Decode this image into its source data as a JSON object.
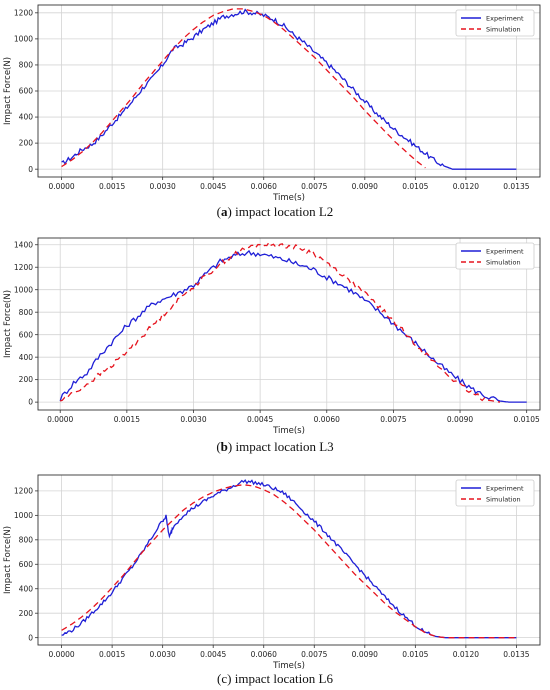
{
  "chart_data": [
    {
      "type": "line",
      "xlabel": "Time(s)",
      "ylabel": "Impact Force(N)",
      "xticks": [
        "0.0000",
        "0.0015",
        "0.0030",
        "0.0045",
        "0.0060",
        "0.0075",
        "0.0090",
        "0.0105",
        "0.0120",
        "0.0135"
      ],
      "yticks": [
        "0",
        "200",
        "400",
        "600",
        "800",
        "1000",
        "1200"
      ],
      "xlim": [
        -0.0007,
        0.0142
      ],
      "ylim": [
        -60,
        1260
      ],
      "grid": true,
      "legend": "top-right",
      "caption_letter": "a",
      "caption_text": "impact location L2",
      "series": [
        {
          "name": "Experiment",
          "color": "#1f1fd6",
          "dash": "solid",
          "noise": 18,
          "x": [
            0,
            0.0003,
            0.0006,
            0.0009,
            0.0012,
            0.0015,
            0.0018,
            0.0021,
            0.0024,
            0.0027,
            0.003,
            0.0033,
            0.0036,
            0.0039,
            0.0042,
            0.0045,
            0.0048,
            0.0051,
            0.0054,
            0.0057,
            0.006,
            0.0063,
            0.0066,
            0.0069,
            0.0072,
            0.0075,
            0.0078,
            0.0081,
            0.0084,
            0.0087,
            0.009,
            0.0093,
            0.0096,
            0.0099,
            0.0102,
            0.0105,
            0.0108,
            0.0111,
            0.0114,
            0.0116,
            0.012,
            0.0125,
            0.013,
            0.0135
          ],
          "y": [
            40,
            90,
            150,
            190,
            260,
            350,
            430,
            520,
            620,
            700,
            800,
            920,
            960,
            1010,
            1070,
            1120,
            1170,
            1190,
            1210,
            1200,
            1180,
            1150,
            1100,
            1030,
            970,
            900,
            830,
            760,
            680,
            600,
            520,
            440,
            370,
            300,
            240,
            180,
            120,
            60,
            20,
            0,
            0,
            0,
            0,
            0
          ]
        },
        {
          "name": "Simulation",
          "color": "#e6141e",
          "dash": "6,4",
          "noise": 0,
          "x": [
            0,
            0.0003,
            0.0006,
            0.0009,
            0.0012,
            0.0015,
            0.0018,
            0.0021,
            0.0024,
            0.0027,
            0.003,
            0.0033,
            0.0036,
            0.0039,
            0.0042,
            0.0045,
            0.0048,
            0.0051,
            0.0054,
            0.0057,
            0.006,
            0.0063,
            0.0066,
            0.0069,
            0.0072,
            0.0075,
            0.0078,
            0.0081,
            0.0084,
            0.0087,
            0.009,
            0.0093,
            0.0096,
            0.0099,
            0.0102,
            0.0105,
            0.0108
          ],
          "y": [
            20,
            70,
            130,
            200,
            280,
            370,
            460,
            550,
            650,
            740,
            830,
            920,
            1000,
            1070,
            1130,
            1180,
            1210,
            1230,
            1230,
            1210,
            1180,
            1130,
            1070,
            1000,
            930,
            860,
            780,
            700,
            620,
            540,
            450,
            370,
            290,
            210,
            140,
            70,
            10
          ]
        }
      ]
    },
    {
      "type": "line",
      "xlabel": "Time(s)",
      "ylabel": "Impact Force(N)",
      "xticks": [
        "0.0000",
        "0.0015",
        "0.0030",
        "0.0045",
        "0.0060",
        "0.0075",
        "0.0090",
        "0.0105"
      ],
      "yticks": [
        "0",
        "200",
        "400",
        "600",
        "800",
        "1000",
        "1200",
        "1400"
      ],
      "xlim": [
        -0.0005,
        0.0108
      ],
      "ylim": [
        -70,
        1460
      ],
      "grid": true,
      "legend": "top-right",
      "caption_letter": "b",
      "caption_text": "impact location L3",
      "series": [
        {
          "name": "Experiment",
          "color": "#1f1fd6",
          "dash": "solid",
          "noise": 25,
          "x": [
            0,
            0.0003,
            0.0006,
            0.0009,
            0.0012,
            0.0015,
            0.0018,
            0.0021,
            0.0024,
            0.0027,
            0.003,
            0.0033,
            0.0036,
            0.0039,
            0.0042,
            0.0045,
            0.0048,
            0.0051,
            0.0054,
            0.0057,
            0.006,
            0.0063,
            0.0066,
            0.0069,
            0.0072,
            0.0075,
            0.0078,
            0.0081,
            0.0084,
            0.0087,
            0.009,
            0.0093,
            0.0096,
            0.0099,
            0.0101,
            0.0103,
            0.0105
          ],
          "y": [
            30,
            170,
            260,
            420,
            550,
            680,
            780,
            880,
            930,
            980,
            1040,
            1150,
            1250,
            1300,
            1330,
            1320,
            1290,
            1260,
            1220,
            1180,
            1110,
            1050,
            980,
            890,
            800,
            700,
            590,
            490,
            380,
            280,
            190,
            110,
            50,
            10,
            0,
            0,
            0
          ]
        },
        {
          "name": "Simulation",
          "color": "#e6141e",
          "dash": "6,4",
          "noise": 22,
          "x": [
            0,
            0.0003,
            0.0006,
            0.0009,
            0.0012,
            0.0015,
            0.0018,
            0.0021,
            0.0024,
            0.0027,
            0.003,
            0.0033,
            0.0036,
            0.0039,
            0.0042,
            0.0045,
            0.0048,
            0.0051,
            0.0054,
            0.0057,
            0.006,
            0.0063,
            0.0066,
            0.0069,
            0.0072,
            0.0075,
            0.0078,
            0.0081,
            0.0084,
            0.0087,
            0.009,
            0.0093,
            0.0096,
            0.0099
          ],
          "y": [
            10,
            80,
            160,
            250,
            340,
            450,
            570,
            690,
            810,
            920,
            1030,
            1130,
            1230,
            1310,
            1370,
            1400,
            1400,
            1390,
            1370,
            1320,
            1240,
            1150,
            1050,
            950,
            840,
            720,
            600,
            480,
            360,
            250,
            150,
            70,
            20,
            0
          ]
        }
      ]
    },
    {
      "type": "line",
      "xlabel": "Time(s)",
      "ylabel": "Impact Force(N)",
      "xticks": [
        "0.0000",
        "0.0015",
        "0.0030",
        "0.0045",
        "0.0060",
        "0.0075",
        "0.0090",
        "0.0105",
        "0.0120",
        "0.0135"
      ],
      "yticks": [
        "0",
        "200",
        "400",
        "600",
        "800",
        "1000",
        "1200"
      ],
      "xlim": [
        -0.0007,
        0.0142
      ],
      "ylim": [
        -60,
        1330
      ],
      "grid": true,
      "legend": "top-right",
      "caption_letter": "c",
      "caption_text": "impact location L6",
      "series": [
        {
          "name": "Experiment",
          "color": "#1f1fd6",
          "dash": "solid",
          "noise": 15,
          "x": [
            0,
            0.0003,
            0.0006,
            0.0009,
            0.0012,
            0.0015,
            0.0018,
            0.0021,
            0.0024,
            0.0027,
            0.003,
            0.0031,
            0.0032,
            0.0033,
            0.0036,
            0.0039,
            0.0042,
            0.0045,
            0.0048,
            0.0051,
            0.0054,
            0.0057,
            0.006,
            0.0063,
            0.0066,
            0.0069,
            0.0072,
            0.0075,
            0.0078,
            0.0081,
            0.0084,
            0.0087,
            0.009,
            0.0093,
            0.0096,
            0.0099,
            0.0102,
            0.0105,
            0.0108,
            0.0111,
            0.0114,
            0.012,
            0.0125,
            0.013,
            0.0135
          ],
          "y": [
            20,
            60,
            120,
            200,
            280,
            370,
            480,
            580,
            700,
            830,
            960,
            990,
            820,
            900,
            1000,
            1060,
            1110,
            1160,
            1200,
            1240,
            1280,
            1270,
            1250,
            1220,
            1180,
            1110,
            1030,
            950,
            870,
            780,
            690,
            600,
            510,
            420,
            330,
            250,
            170,
            100,
            40,
            10,
            0,
            0,
            0,
            0,
            0
          ]
        },
        {
          "name": "Simulation",
          "color": "#e6141e",
          "dash": "6,4",
          "noise": 0,
          "x": [
            0,
            0.0003,
            0.0006,
            0.0009,
            0.0012,
            0.0015,
            0.0018,
            0.0021,
            0.0024,
            0.0027,
            0.003,
            0.0033,
            0.0036,
            0.0039,
            0.0042,
            0.0045,
            0.0048,
            0.0051,
            0.0054,
            0.0057,
            0.006,
            0.0063,
            0.0066,
            0.0069,
            0.0072,
            0.0075,
            0.0078,
            0.0081,
            0.0084,
            0.0087,
            0.009,
            0.0093,
            0.0096,
            0.0099,
            0.0102,
            0.0105,
            0.0108,
            0.0111,
            0.0114,
            0.012,
            0.0125,
            0.013,
            0.0135
          ],
          "y": [
            60,
            110,
            170,
            240,
            320,
            410,
            500,
            600,
            700,
            790,
            880,
            960,
            1040,
            1100,
            1150,
            1190,
            1220,
            1240,
            1250,
            1240,
            1210,
            1170,
            1110,
            1040,
            960,
            880,
            790,
            700,
            610,
            520,
            440,
            360,
            280,
            210,
            150,
            90,
            40,
            10,
            0,
            0,
            0,
            0,
            0
          ]
        }
      ]
    }
  ]
}
